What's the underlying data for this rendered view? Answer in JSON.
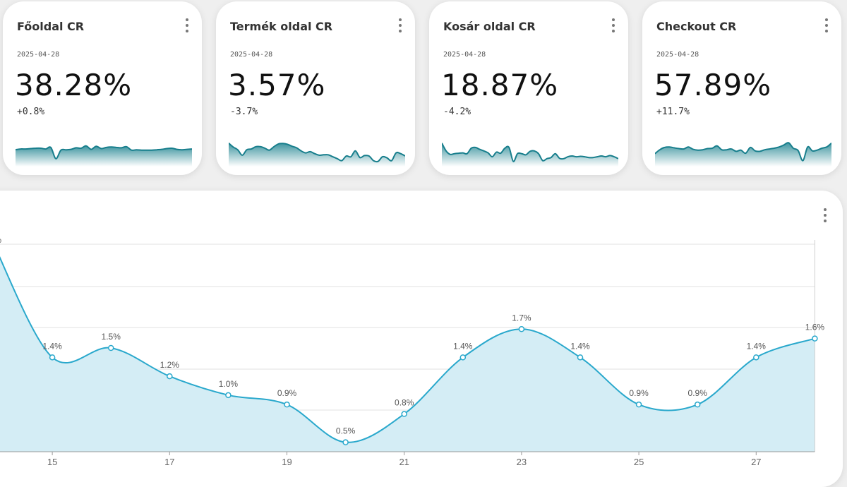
{
  "cards": [
    {
      "title": "Főoldal CR",
      "date": "2025-04-28",
      "value": "38.28%",
      "delta": "+0.8%",
      "spark": [
        62,
        60,
        60,
        59,
        58,
        58,
        60,
        56,
        85,
        63,
        62,
        61,
        57,
        58,
        52,
        61,
        53,
        59,
        56,
        55,
        56,
        57,
        54,
        63,
        62,
        63,
        63,
        63,
        62,
        61,
        59,
        58,
        61,
        62,
        61,
        60
      ]
    },
    {
      "title": "Termék oldal CR",
      "date": "2025-04-28",
      "value": "3.57%",
      "delta": "-3.7%",
      "spark": [
        45,
        55,
        62,
        76,
        62,
        60,
        54,
        54,
        58,
        63,
        54,
        47,
        46,
        48,
        53,
        57,
        65,
        70,
        67,
        72,
        76,
        75,
        75,
        80,
        85,
        90,
        78,
        80,
        65,
        82,
        77,
        78,
        90,
        92,
        80,
        83,
        90,
        70,
        72,
        78
      ]
    },
    {
      "title": "Kosár oldal CR",
      "date": "2025-04-28",
      "value": "18.87%",
      "delta": "-4.2%",
      "spark": [
        45,
        65,
        74,
        72,
        71,
        70,
        72,
        58,
        56,
        61,
        65,
        70,
        80,
        68,
        71,
        58,
        56,
        92,
        72,
        72,
        75,
        66,
        65,
        72,
        90,
        85,
        82,
        72,
        84,
        85,
        80,
        78,
        80,
        79,
        80,
        82,
        82,
        80,
        78,
        80,
        77,
        80,
        85
      ]
    },
    {
      "title": "Checkout CR",
      "date": "2025-04-28",
      "value": "57.89%",
      "delta": "+11.7%",
      "spark": [
        72,
        62,
        56,
        55,
        57,
        59,
        60,
        55,
        61,
        63,
        62,
        59,
        58,
        52,
        62,
        62,
        60,
        66,
        63,
        71,
        56,
        65,
        66,
        62,
        60,
        58,
        55,
        50,
        44,
        58,
        64,
        90,
        55,
        65,
        63,
        58,
        55,
        45
      ]
    }
  ],
  "chart_data": {
    "type": "area",
    "x": [
      14,
      15,
      16,
      17,
      18,
      19,
      20,
      21,
      22,
      23,
      24,
      25,
      26,
      27,
      28
    ],
    "values": [
      2.6,
      1.4,
      1.5,
      1.2,
      1.0,
      0.9,
      0.5,
      0.8,
      1.4,
      1.7,
      1.4,
      0.9,
      0.9,
      1.4,
      1.6
    ],
    "point_labels": [
      "%",
      "1.4%",
      "1.5%",
      "1.2%",
      "1.0%",
      "0.9%",
      "0.5%",
      "0.8%",
      "1.4%",
      "1.7%",
      "1.4%",
      "0.9%",
      "0.9%",
      "1.4%",
      "1.6%"
    ],
    "x_ticks": [
      "15",
      "17",
      "19",
      "21",
      "23",
      "25",
      "27"
    ],
    "x_tick_values": [
      15,
      17,
      19,
      21,
      23,
      25,
      27
    ],
    "ylim": [
      0.4,
      2.6
    ],
    "grid": true,
    "line_color": "#29a8cc",
    "fill_color": "#d4edf5"
  },
  "colors": {
    "spark_line": "#177e8c",
    "spark_fill_top": "#2a8a96",
    "spark_fill_bottom": "#ffffff"
  }
}
